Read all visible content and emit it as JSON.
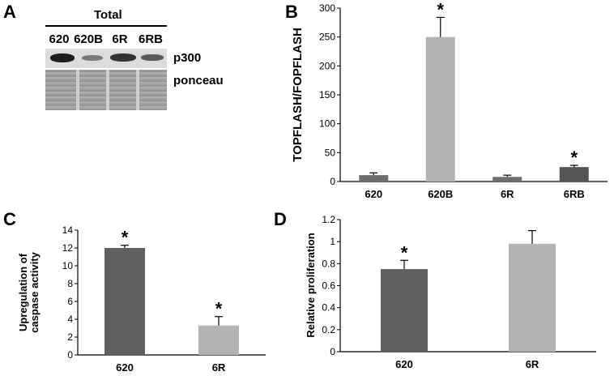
{
  "panels": {
    "a": {
      "letter": "A",
      "header": "Total",
      "lanes": [
        "620",
        "620B",
        "6R",
        "6RB"
      ],
      "row_labels": [
        "p300",
        "ponceau"
      ],
      "p300_relative_intensity": [
        1.0,
        0.45,
        0.85,
        0.55
      ]
    }
  },
  "chart_data": [
    {
      "panel": "B",
      "type": "bar",
      "categories": [
        "620",
        "620B",
        "6R",
        "6RB"
      ],
      "values": [
        11,
        250,
        8,
        25
      ],
      "errors": [
        4,
        34,
        3,
        3
      ],
      "colors": [
        "#6d6d6d",
        "#b3b3b3",
        "#6d6d6d",
        "#555555"
      ],
      "significance": [
        "",
        "*",
        "",
        "*"
      ],
      "title": "",
      "xlabel": "",
      "ylabel": "TOPFLASH/FOPFLASH",
      "ylim": [
        0,
        300
      ],
      "yticks": [
        "0",
        "50",
        "100",
        "150",
        "200",
        "250",
        "300"
      ]
    },
    {
      "panel": "C",
      "type": "bar",
      "categories": [
        "620",
        "6R"
      ],
      "values": [
        12.0,
        3.3
      ],
      "errors": [
        0.3,
        1.0
      ],
      "colors": [
        "#5f5f5f",
        "#b3b3b3"
      ],
      "significance": [
        "*",
        "*"
      ],
      "title": "",
      "xlabel": "",
      "ylabel": [
        "Upregulation of",
        "caspase activity"
      ],
      "ylim": [
        0,
        14
      ],
      "yticks": [
        "0",
        "2",
        "4",
        "6",
        "8",
        "10",
        "12",
        "14"
      ]
    },
    {
      "panel": "D",
      "type": "bar",
      "categories": [
        "620",
        "6R"
      ],
      "values": [
        0.75,
        0.98
      ],
      "errors": [
        0.08,
        0.12
      ],
      "colors": [
        "#5f5f5f",
        "#b3b3b3"
      ],
      "significance": [
        "*",
        ""
      ],
      "title": "",
      "xlabel": "",
      "ylabel": "Relative proliferation",
      "ylim": [
        0,
        1.2
      ],
      "yticks": [
        "0",
        "0.2",
        "0.4",
        "0.6",
        "0.8",
        "1",
        "1.2"
      ]
    }
  ]
}
